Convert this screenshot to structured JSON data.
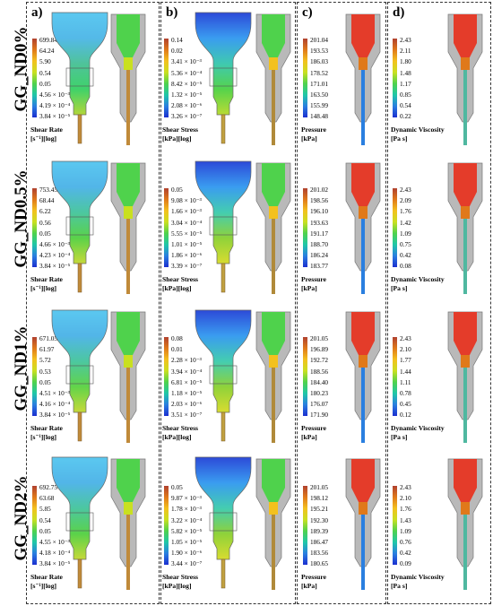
{
  "panels": [
    {
      "letter": "a)"
    },
    {
      "letter": "b)"
    },
    {
      "letter": "c)"
    },
    {
      "letter": "d)"
    }
  ],
  "rows": [
    {
      "label": "GG_ND0%",
      "shear_rate": {
        "ticks": [
          "699.84",
          "64.24",
          "5.90",
          "0.54",
          "0.05",
          "4.56 × 10⁻³",
          "4.19 × 10⁻⁴",
          "3.84 × 10⁻⁵"
        ],
        "title": "Shear Rate",
        "unit": "[s⁻¹][log]"
      },
      "shear_stress": {
        "ticks": [
          "0.14",
          "0.02",
          "3.41 × 10⁻³",
          "5.36 × 10⁻⁴",
          "8.42 × 10⁻⁵",
          "1.32 × 10⁻⁵",
          "2.08 × 10⁻⁶",
          "3.26 × 10⁻⁷"
        ],
        "title": "Shear Stress",
        "unit": "[kPa][log]"
      },
      "pressure": {
        "ticks": [
          "201.04",
          "193.53",
          "186.03",
          "178.52",
          "171.01",
          "163.50",
          "155.99",
          "148.48"
        ],
        "title": "Pressure",
        "unit": "[kPa]"
      },
      "viscosity": {
        "ticks": [
          "2.43",
          "2.11",
          "1.80",
          "1.48",
          "1.17",
          "0.85",
          "0.54",
          "0.22"
        ],
        "title": "Dynamic Viscosity",
        "unit": "[Pa s]"
      }
    },
    {
      "label": "GG_ND0.5%",
      "shear_rate": {
        "ticks": [
          "753.45",
          "68.44",
          "6.22",
          "0.56",
          "0.05",
          "4.66 × 10⁻³",
          "4.23 × 10⁻⁴",
          "3.84 × 10⁻⁵"
        ],
        "title": "Shear Rate",
        "unit": "[s⁻¹][log]"
      },
      "shear_stress": {
        "ticks": [
          "0.05",
          "9.08 × 10⁻³",
          "1.66 × 10⁻³",
          "3.04 × 10⁻⁴",
          "5.55 × 10⁻⁵",
          "1.01 × 10⁻⁵",
          "1.86 × 10⁻⁶",
          "3.39 × 10⁻⁷"
        ],
        "title": "Shear Stress",
        "unit": "[kPa][log]"
      },
      "pressure": {
        "ticks": [
          "201.02",
          "198.56",
          "196.10",
          "193.63",
          "191.17",
          "188.70",
          "186.24",
          "183.77"
        ],
        "title": "Pressure",
        "unit": "[kPa]"
      },
      "viscosity": {
        "ticks": [
          "2.43",
          "2.09",
          "1.76",
          "1.42",
          "1.09",
          "0.75",
          "0.42",
          "0.08"
        ],
        "title": "Dynamic Viscosity",
        "unit": "[Pa s]"
      }
    },
    {
      "label": "GG_ND1%",
      "shear_rate": {
        "ticks": [
          "671.05",
          "61.97",
          "5.72",
          "0.53",
          "0.05",
          "4.51 × 10⁻³",
          "4.16 × 10⁻⁴",
          "3.84 × 10⁻⁵"
        ],
        "title": "Shear Rate",
        "unit": "[s⁻¹][log]"
      },
      "shear_stress": {
        "ticks": [
          "0.08",
          "0.01",
          "2.28 × 10⁻³",
          "3.94 × 10⁻⁴",
          "6.81 × 10⁻⁵",
          "1.18 × 10⁻⁵",
          "2.03 × 10⁻⁶",
          "3.51 × 10⁻⁷"
        ],
        "title": "Shear Stress",
        "unit": "[kPa][log]"
      },
      "pressure": {
        "ticks": [
          "201.05",
          "196.89",
          "192.72",
          "188.56",
          "184.40",
          "180.23",
          "176.07",
          "171.90"
        ],
        "title": "Pressure",
        "unit": "[kPa]"
      },
      "viscosity": {
        "ticks": [
          "2.43",
          "2.10",
          "1.77",
          "1.44",
          "1.11",
          "0.78",
          "0.45",
          "0.12"
        ],
        "title": "Dynamic Viscosity",
        "unit": "[Pa s]"
      }
    },
    {
      "label": "GG_ND2%",
      "shear_rate": {
        "ticks": [
          "692.75",
          "63.68",
          "5.85",
          "0.54",
          "0.05",
          "4.55 × 10⁻³",
          "4.18 × 10⁻⁴",
          "3.84 × 10⁻⁵"
        ],
        "title": "Shear Rate",
        "unit": "[s⁻¹][log]"
      },
      "shear_stress": {
        "ticks": [
          "0.05",
          "9.87 × 10⁻³",
          "1.78 × 10⁻³",
          "3.22 × 10⁻⁴",
          "5.82 × 10⁻⁵",
          "1.05 × 10⁻⁵",
          "1.90 × 10⁻⁶",
          "3.44 × 10⁻⁷"
        ],
        "title": "Shear Stress",
        "unit": "[kPa][log]"
      },
      "pressure": {
        "ticks": [
          "201.05",
          "198.12",
          "195.21",
          "192.30",
          "189.39",
          "186.47",
          "183.56",
          "180.65"
        ],
        "title": "Pressure",
        "unit": "[kPa]"
      },
      "viscosity": {
        "ticks": [
          "2.43",
          "2.10",
          "1.76",
          "1.43",
          "1.09",
          "0.76",
          "0.42",
          "0.09"
        ],
        "title": "Dynamic Viscosity",
        "unit": "[Pa s]"
      }
    }
  ],
  "colors": {
    "colormap": [
      "#b0412f",
      "#e0791a",
      "#f3c11e",
      "#c9e020",
      "#4fd24c",
      "#1fc7a8",
      "#2a7fe0",
      "#1b2fd0"
    ],
    "nozzle_gray": "#b9b9b9"
  }
}
